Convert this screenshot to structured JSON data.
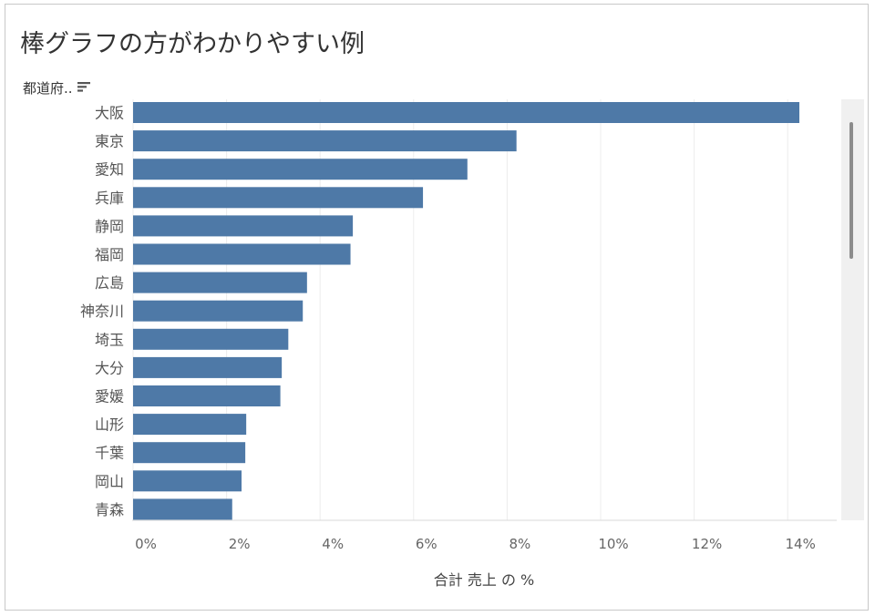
{
  "chart_data": {
    "type": "bar",
    "orientation": "horizontal",
    "title": "棒グラフの方がわかりやすい例",
    "ylabel": "都道府..",
    "xlabel": "合計 売上 の %",
    "categories": [
      "大阪",
      "東京",
      "愛知",
      "兵庫",
      "静岡",
      "福岡",
      "広島",
      "神奈川",
      "埼玉",
      "大分",
      "愛媛",
      "山形",
      "千葉",
      "岡山",
      "青森"
    ],
    "values": [
      14.25,
      8.2,
      7.15,
      6.2,
      4.7,
      4.65,
      3.72,
      3.63,
      3.32,
      3.18,
      3.15,
      2.42,
      2.4,
      2.32,
      2.12
    ],
    "xlim": [
      0,
      15
    ],
    "x_ticks": [
      "0%",
      "2%",
      "4%",
      "6%",
      "8%",
      "10%",
      "12%",
      "14%"
    ],
    "bar_color": "#4e79a7",
    "grid": "vertical"
  },
  "ui": {
    "sort_icon": "sort-descending-icon"
  }
}
